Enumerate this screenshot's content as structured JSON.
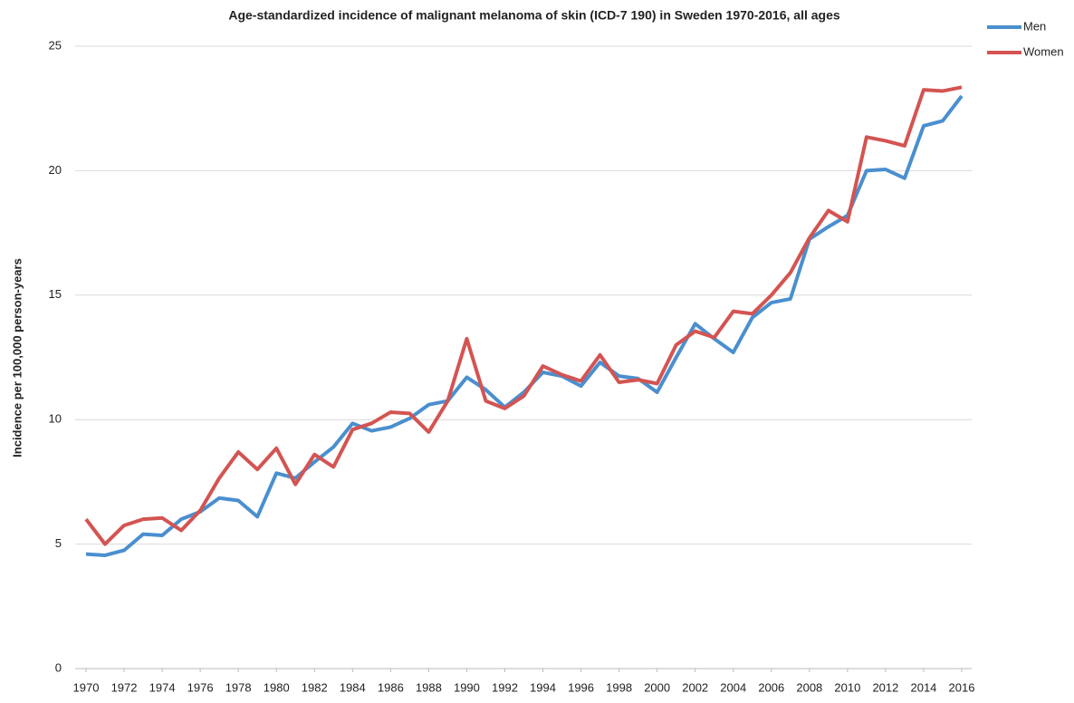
{
  "chart_data": {
    "type": "line",
    "title": "Age-standardized incidence of malignant melanoma of skin (ICD-7 190) in Sweden 1970-2016, all ages",
    "y_label": "Incidence per 100,000 person-years",
    "x": [
      1970,
      1971,
      1972,
      1973,
      1974,
      1975,
      1976,
      1977,
      1978,
      1979,
      1980,
      1981,
      1982,
      1983,
      1984,
      1985,
      1986,
      1987,
      1988,
      1989,
      1990,
      1991,
      1992,
      1993,
      1994,
      1995,
      1996,
      1997,
      1998,
      1999,
      2000,
      2001,
      2002,
      2003,
      2004,
      2005,
      2006,
      2007,
      2008,
      2009,
      2010,
      2011,
      2012,
      2013,
      2014,
      2015,
      2016
    ],
    "series": [
      {
        "name": "Men",
        "color": "#4a8fcf",
        "values": [
          4.6,
          4.55,
          4.75,
          5.4,
          5.35,
          6.0,
          6.3,
          6.85,
          6.75,
          6.1,
          7.85,
          7.65,
          8.3,
          8.9,
          9.85,
          9.55,
          9.7,
          10.05,
          10.6,
          10.75,
          11.7,
          11.2,
          10.5,
          11.1,
          11.9,
          11.75,
          11.35,
          12.3,
          11.75,
          11.65,
          11.1,
          12.5,
          13.85,
          13.25,
          12.7,
          14.1,
          14.7,
          14.85,
          17.25,
          17.75,
          18.2,
          20.0,
          20.05,
          19.7,
          21.8,
          22.0,
          23.0
        ]
      },
      {
        "name": "Women",
        "color": "#d35452",
        "values": [
          6.0,
          5.0,
          5.75,
          6.0,
          6.05,
          5.55,
          6.35,
          7.65,
          8.7,
          8.0,
          8.85,
          7.4,
          8.6,
          8.1,
          9.6,
          9.85,
          10.3,
          10.25,
          9.5,
          10.75,
          13.25,
          10.75,
          10.45,
          10.95,
          12.15,
          11.8,
          11.55,
          12.6,
          11.5,
          11.6,
          11.45,
          13.0,
          13.55,
          13.3,
          14.35,
          14.25,
          15.0,
          15.9,
          17.3,
          18.4,
          17.95,
          21.35,
          21.2,
          21.0,
          23.25,
          23.2,
          23.35
        ]
      }
    ],
    "xlim": [
      1970,
      2016
    ],
    "xticks": [
      1970,
      1972,
      1974,
      1976,
      1978,
      1980,
      1982,
      1984,
      1986,
      1988,
      1990,
      1992,
      1994,
      1996,
      1998,
      2000,
      2002,
      2004,
      2006,
      2008,
      2010,
      2012,
      2014,
      2016
    ],
    "ylim": [
      0,
      25
    ],
    "yticks": [
      0,
      5,
      10,
      15,
      20,
      25
    ],
    "grid": true,
    "legend": "top-right"
  }
}
